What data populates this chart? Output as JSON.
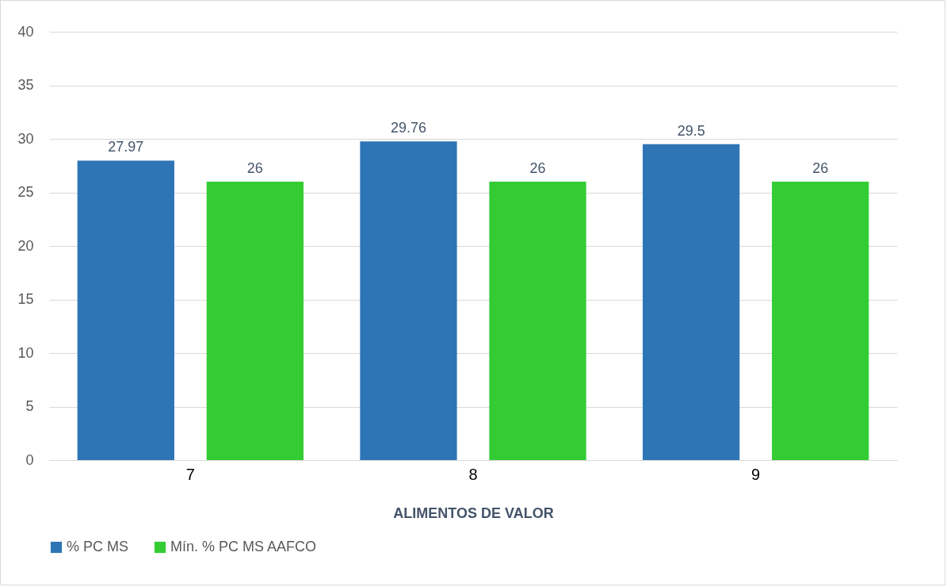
{
  "chart_data": {
    "type": "bar",
    "xlabel": "ALIMENTOS DE VALOR",
    "categories": [
      "7",
      "8",
      "9"
    ],
    "series": [
      {
        "name": "% PC MS",
        "color": "#2e75b6",
        "values": [
          27.97,
          29.76,
          29.5
        ]
      },
      {
        "name": "Mín. % PC MS AAFCO",
        "color": "#33cc33",
        "values": [
          26,
          26,
          26
        ]
      }
    ],
    "ylim": [
      0,
      40
    ],
    "yticks": [
      0,
      5,
      10,
      15,
      20,
      25,
      30,
      35,
      40
    ],
    "grid": "y",
    "legend": "bottom",
    "data_labels": true
  }
}
